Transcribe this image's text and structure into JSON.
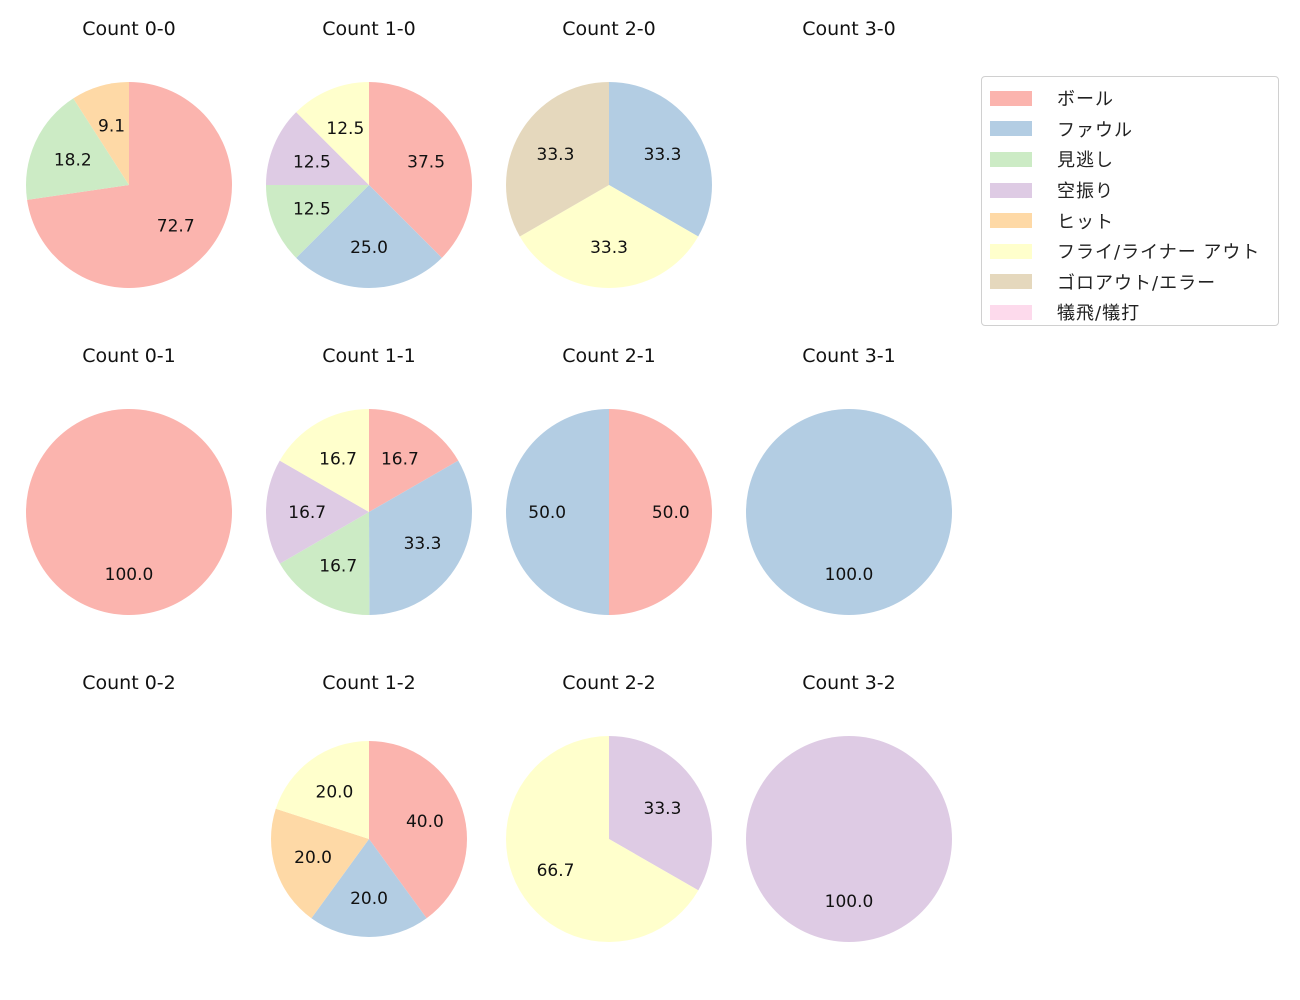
{
  "chart_data": {
    "type": "pie",
    "legend_position": "top-right",
    "categories": [
      "ボール",
      "ファウル",
      "見逃し",
      "空振り",
      "ヒット",
      "フライ/ライナー アウト",
      "ゴロアウト/エラー",
      "犠飛/犠打"
    ],
    "colors": [
      "#fbb4ae",
      "#b3cde3",
      "#ccebc5",
      "#decbe4",
      "#fed9a6",
      "#ffffcc",
      "#e5d8bd",
      "#fddaec"
    ],
    "start_angle": 90,
    "direction": "clockwise",
    "charts": [
      {
        "title": "Count 0-0",
        "values": [
          72.7,
          0,
          18.2,
          0,
          9.1,
          0,
          0,
          0
        ]
      },
      {
        "title": "Count 1-0",
        "values": [
          37.5,
          25.0,
          12.5,
          12.5,
          0,
          12.5,
          0,
          0
        ]
      },
      {
        "title": "Count 2-0",
        "values": [
          0,
          33.3,
          0,
          0,
          0,
          33.3,
          33.3,
          0
        ]
      },
      {
        "title": "Count 3-0",
        "values": []
      },
      {
        "title": "Count 0-1",
        "values": [
          100.0,
          0,
          0,
          0,
          0,
          0,
          0,
          0
        ]
      },
      {
        "title": "Count 1-1",
        "values": [
          16.7,
          33.3,
          16.7,
          16.7,
          0,
          16.7,
          0,
          0
        ]
      },
      {
        "title": "Count 2-1",
        "values": [
          50.0,
          50.0,
          0,
          0,
          0,
          0,
          0,
          0
        ]
      },
      {
        "title": "Count 3-1",
        "values": [
          0,
          100.0,
          0,
          0,
          0,
          0,
          0,
          0
        ]
      },
      {
        "title": "Count 0-2",
        "values": []
      },
      {
        "title": "Count 1-2",
        "values": [
          40.0,
          20.0,
          0,
          0,
          20.0,
          20.0,
          0,
          0
        ]
      },
      {
        "title": "Count 2-2",
        "values": [
          0,
          0,
          0,
          33.3,
          0,
          66.7,
          0,
          0
        ]
      },
      {
        "title": "Count 3-2",
        "values": [
          0,
          0,
          0,
          100.0,
          0,
          0,
          0,
          0
        ]
      }
    ]
  }
}
